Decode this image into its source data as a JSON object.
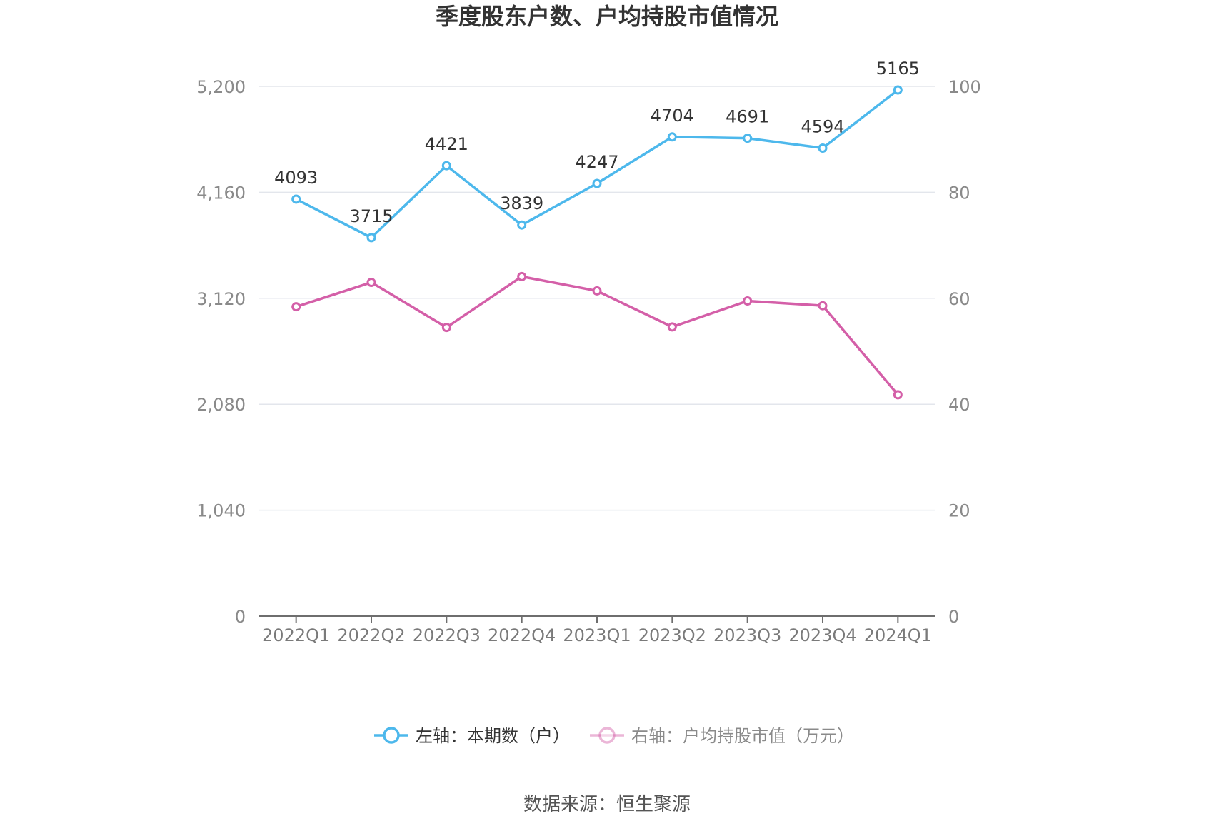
{
  "chart_data": {
    "type": "line",
    "title": "季度股东户数、户均持股市值情况",
    "categories": [
      "2022Q1",
      "2022Q2",
      "2022Q3",
      "2022Q4",
      "2023Q1",
      "2023Q2",
      "2023Q3",
      "2023Q4",
      "2024Q1"
    ],
    "y_left": {
      "ticks": [
        "0",
        "1,040",
        "2,080",
        "3,120",
        "4,160",
        "5,200"
      ],
      "min": 0,
      "max": 5200
    },
    "y_right": {
      "ticks": [
        "0",
        "20",
        "40",
        "60",
        "80",
        "100"
      ],
      "min": 0,
      "max": 100
    },
    "series": [
      {
        "name": "左轴：本期数（户）",
        "axis": "left",
        "color": "#4db8ec",
        "values": [
          4093,
          3715,
          4421,
          3839,
          4247,
          4704,
          4691,
          4594,
          5165
        ],
        "labels": [
          "4093",
          "3715",
          "4421",
          "3839",
          "4247",
          "4704",
          "4691",
          "4594",
          "5165"
        ]
      },
      {
        "name": "右轴：户均持股市值（万元）",
        "axis": "right",
        "color": "#d45fa8",
        "values": [
          58.4,
          63.0,
          54.5,
          64.1,
          61.4,
          54.6,
          59.5,
          58.6,
          41.8
        ]
      }
    ],
    "legend_position": "bottom-center",
    "grid": true
  },
  "source": "数据来源：恒生聚源"
}
